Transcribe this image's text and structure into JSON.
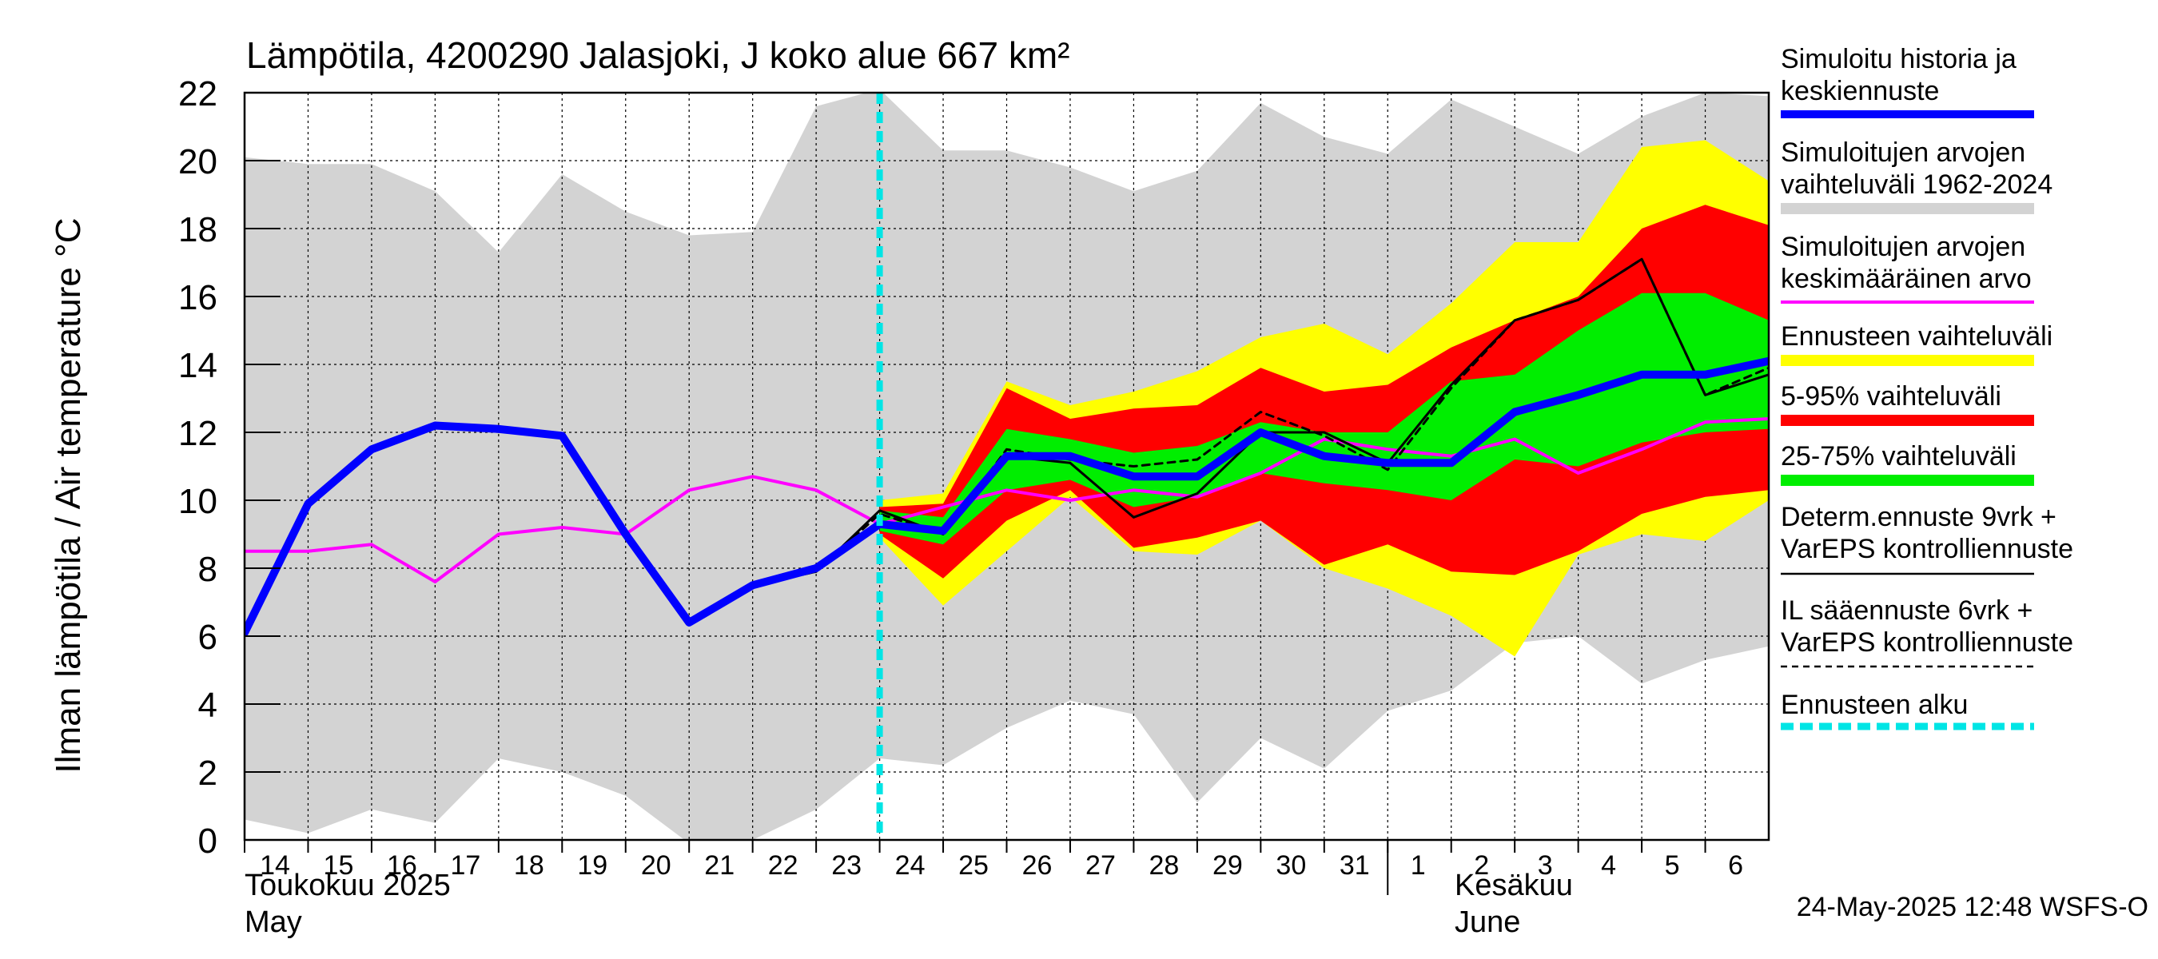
{
  "title": "Lämpötila, 4200290 Jalasjoki, J koko alue 667 km²",
  "ylabel": "Ilman lämpötila / Air temperature    °C",
  "timestamp": "24-May-2025 12:48 WSFS-O",
  "month_labels": {
    "may_fi": "Toukokuu  2025",
    "may_en": "May",
    "june_fi": "Kesäkuu",
    "june_en": "June"
  },
  "legend": [
    {
      "label": "Simuloitu historia ja keskiennuste",
      "color": "#0000ff",
      "style": "thick"
    },
    {
      "label": "Simuloitujen arvojen vaihteluväli 1962-2024",
      "color": "#d3d3d3",
      "style": "band"
    },
    {
      "label": "Simuloitujen arvojen keskimääräinen arvo",
      "color": "#ff00ff",
      "style": "line"
    },
    {
      "label": "Ennusteen vaihteluväli",
      "color": "#ffff00",
      "style": "band"
    },
    {
      "label": "5-95% vaihteluväli",
      "color": "#ff0000",
      "style": "band"
    },
    {
      "label": "25-75% vaihteluväli",
      "color": "#00ee00",
      "style": "band"
    },
    {
      "label": "Determ.ennuste 9vrk + VarEPS kontrolliennuste",
      "color": "#000000",
      "style": "thin"
    },
    {
      "label": "IL sääennuste 6vrk  + VarEPS kontrolliennuste",
      "color": "#000000",
      "style": "dashed"
    },
    {
      "label": "Ennusteen alku",
      "color": "#00e5e5",
      "style": "cyan-dashed"
    }
  ],
  "chart_data": {
    "type": "line",
    "ylim": [
      0,
      22
    ],
    "yticks": [
      0,
      2,
      4,
      6,
      8,
      10,
      12,
      14,
      16,
      18,
      20,
      22
    ],
    "grid": true,
    "xticks": [
      {
        "x": 0,
        "label": "14"
      },
      {
        "x": 1,
        "label": "15"
      },
      {
        "x": 2,
        "label": "16"
      },
      {
        "x": 3,
        "label": "17"
      },
      {
        "x": 4,
        "label": "18"
      },
      {
        "x": 5,
        "label": "19"
      },
      {
        "x": 6,
        "label": "20"
      },
      {
        "x": 7,
        "label": "21"
      },
      {
        "x": 8,
        "label": "22"
      },
      {
        "x": 9,
        "label": "23"
      },
      {
        "x": 10,
        "label": "24"
      },
      {
        "x": 11,
        "label": "25"
      },
      {
        "x": 12,
        "label": "26"
      },
      {
        "x": 13,
        "label": "27"
      },
      {
        "x": 14,
        "label": "28"
      },
      {
        "x": 15,
        "label": "29"
      },
      {
        "x": 16,
        "label": "30"
      },
      {
        "x": 17,
        "label": "31"
      },
      {
        "x": 18,
        "label": "1"
      },
      {
        "x": 19,
        "label": "2"
      },
      {
        "x": 20,
        "label": "3"
      },
      {
        "x": 21,
        "label": "4"
      },
      {
        "x": 22,
        "label": "5"
      },
      {
        "x": 23,
        "label": "6"
      }
    ],
    "xlim": [
      0,
      24
    ],
    "forecast_start_x": 10.0,
    "month_boundary_x": 18.0,
    "historical_range": {
      "x": [
        0,
        1,
        2,
        3,
        4,
        5,
        6,
        7,
        8,
        9,
        10,
        11,
        12,
        13,
        14,
        15,
        16,
        17,
        18,
        19,
        20,
        21,
        22,
        23,
        24
      ],
      "upper": [
        20.1,
        19.9,
        19.9,
        19.1,
        17.3,
        19.6,
        18.5,
        17.8,
        17.9,
        21.6,
        22.1,
        20.3,
        20.3,
        19.8,
        19.1,
        19.7,
        21.7,
        20.7,
        20.2,
        21.8,
        21.0,
        20.2,
        21.3,
        22.0,
        21.9
      ],
      "lower": [
        0.6,
        0.2,
        0.9,
        0.5,
        2.4,
        2.0,
        1.3,
        -0.1,
        0.0,
        0.9,
        2.4,
        2.2,
        3.3,
        4.1,
        3.7,
        1.1,
        3.0,
        2.1,
        3.8,
        4.4,
        5.8,
        6.0,
        4.6,
        5.3,
        5.7
      ]
    },
    "historical_mean": {
      "x": [
        0,
        1,
        2,
        3,
        4,
        5,
        6,
        7,
        8,
        9,
        10,
        11,
        12,
        13,
        14,
        15,
        16,
        17,
        18,
        19,
        20,
        21,
        22,
        23,
        24
      ],
      "y": [
        8.5,
        8.5,
        8.7,
        7.6,
        9.0,
        9.2,
        9.0,
        10.3,
        10.7,
        10.3,
        9.3,
        9.8,
        10.3,
        10.0,
        10.3,
        10.1,
        10.8,
        11.8,
        11.5,
        11.3,
        11.8,
        10.8,
        11.5,
        12.3,
        12.4
      ]
    },
    "forecast_range": {
      "x": [
        10,
        11,
        12,
        13,
        14,
        15,
        16,
        17,
        18,
        19,
        20,
        21,
        22,
        23,
        24
      ],
      "upper": [
        10.0,
        10.2,
        13.5,
        12.8,
        13.2,
        13.8,
        14.8,
        15.2,
        14.3,
        15.8,
        17.6,
        17.6,
        20.4,
        20.6,
        19.4
      ],
      "lower": [
        8.9,
        6.9,
        8.5,
        10.1,
        8.5,
        8.4,
        9.4,
        8.0,
        7.4,
        6.6,
        5.4,
        8.4,
        9.0,
        8.8,
        10.0
      ]
    },
    "forecast_5_95": {
      "x": [
        10,
        11,
        12,
        13,
        14,
        15,
        16,
        17,
        18,
        19,
        20,
        21,
        22,
        23,
        24
      ],
      "upper": [
        9.8,
        9.9,
        13.3,
        12.4,
        12.7,
        12.8,
        13.9,
        13.2,
        13.4,
        14.5,
        15.3,
        16.0,
        18.0,
        18.7,
        18.1
      ],
      "lower": [
        9.0,
        7.7,
        9.4,
        10.3,
        8.6,
        8.9,
        9.4,
        8.1,
        8.7,
        7.9,
        7.8,
        8.5,
        9.6,
        10.1,
        10.3
      ]
    },
    "forecast_25_75": {
      "x": [
        10,
        11,
        12,
        13,
        14,
        15,
        16,
        17,
        18,
        19,
        20,
        21,
        22,
        23,
        24
      ],
      "upper": [
        9.7,
        9.5,
        12.1,
        11.8,
        11.4,
        11.6,
        12.3,
        12.0,
        12.0,
        13.5,
        13.7,
        15.0,
        16.1,
        16.1,
        15.3
      ],
      "lower": [
        9.1,
        8.7,
        10.3,
        10.6,
        9.8,
        10.1,
        10.8,
        10.5,
        10.3,
        10.0,
        11.2,
        11.0,
        11.7,
        12.0,
        12.1
      ]
    },
    "simulated_history_and_median": {
      "x": [
        0,
        1,
        2,
        3,
        4,
        5,
        6,
        7,
        8,
        9,
        10,
        11,
        12,
        13,
        14,
        15,
        16,
        17,
        18,
        19,
        20,
        21,
        22,
        23,
        24
      ],
      "y": [
        6.1,
        9.9,
        11.5,
        12.2,
        12.1,
        11.9,
        9.0,
        6.4,
        7.5,
        8.0,
        9.3,
        9.1,
        11.3,
        11.3,
        10.7,
        10.7,
        12.0,
        11.3,
        11.1,
        11.1,
        12.6,
        13.1,
        13.7,
        13.7,
        14.1
      ]
    },
    "deterministic_forecast": {
      "x": [
        8,
        9,
        10,
        11,
        12,
        13,
        14,
        15,
        16,
        17,
        18,
        19,
        20,
        21,
        22,
        23,
        24
      ],
      "y": [
        7.5,
        7.9,
        9.7,
        9.0,
        11.3,
        11.1,
        9.5,
        10.2,
        12.0,
        12.0,
        11.1,
        13.4,
        15.3,
        15.9,
        17.1,
        13.1,
        13.7
      ]
    },
    "il_weather_forecast": {
      "x": [
        8,
        9,
        10,
        11,
        12,
        13,
        14,
        15,
        16,
        17,
        18,
        19,
        20,
        21,
        22,
        23,
        24
      ],
      "y": [
        7.5,
        7.9,
        9.6,
        9.0,
        11.5,
        11.2,
        11.0,
        11.2,
        12.6,
        11.9,
        10.9,
        13.3,
        15.3,
        15.9,
        17.1,
        13.1,
        13.9
      ]
    }
  }
}
